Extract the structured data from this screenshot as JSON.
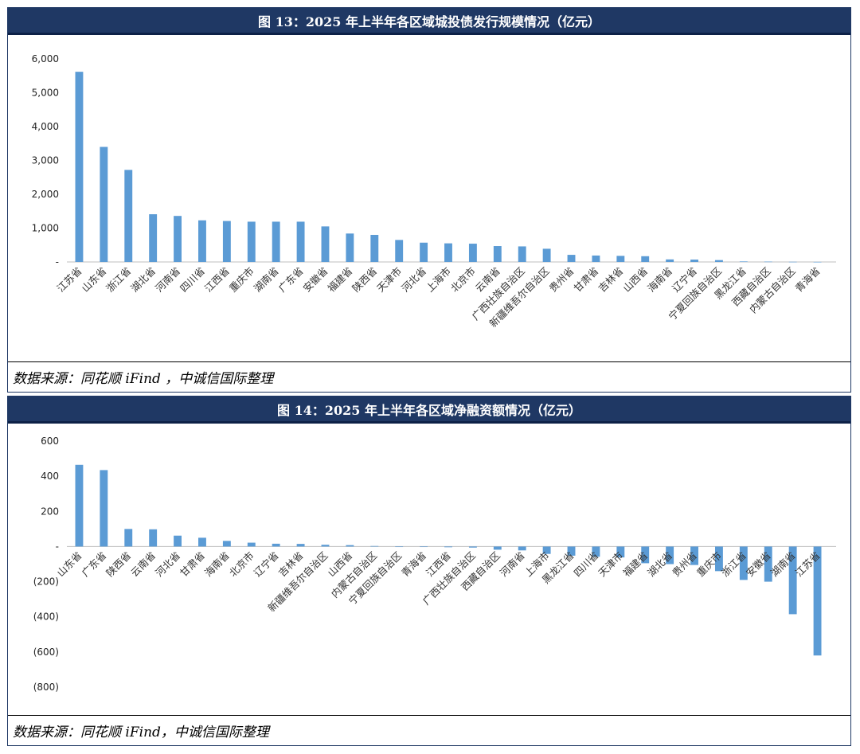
{
  "colors": {
    "bar": "#5b9bd5",
    "title_bg": "#1f3864",
    "axis": "#bfbfbf"
  },
  "figures": [
    {
      "title": "图 13：2025 年上半年各区域城投债发行规模情况（亿元）",
      "source": "数据来源：同花顺 iFind ，中诚信国际整理"
    },
    {
      "title": "图 14：2025 年上半年各区域净融资额情况（亿元）",
      "source": "数据来源：同花顺 iFind，中诚信国际整理"
    }
  ],
  "chart_data": [
    {
      "type": "bar",
      "title": "",
      "xlabel": "",
      "ylabel": "",
      "ylim": [
        0,
        6000
      ],
      "yticks": [
        0,
        1000,
        2000,
        3000,
        4000,
        5000,
        6000
      ],
      "ytick_labels": [
        "-",
        "1,000",
        "2,000",
        "3,000",
        "4,000",
        "5,000",
        "6,000"
      ],
      "grid": false,
      "categories": [
        "江苏省",
        "山东省",
        "浙江省",
        "湖北省",
        "河南省",
        "四川省",
        "江西省",
        "重庆市",
        "湖南省",
        "广东省",
        "安徽省",
        "福建省",
        "陕西省",
        "天津市",
        "河北省",
        "上海市",
        "北京市",
        "云南省",
        "广西壮族自治区",
        "新疆维吾尔自治区",
        "贵州省",
        "甘肃省",
        "吉林省",
        "山西省",
        "海南省",
        "辽宁省",
        "宁夏回族自治区",
        "黑龙江省",
        "西藏自治区",
        "内蒙古自治区",
        "青海省"
      ],
      "values": [
        5620,
        3400,
        2720,
        1410,
        1360,
        1230,
        1210,
        1190,
        1190,
        1190,
        1050,
        840,
        800,
        650,
        570,
        550,
        540,
        470,
        460,
        390,
        210,
        190,
        180,
        170,
        75,
        70,
        55,
        15,
        10,
        5,
        2
      ]
    },
    {
      "type": "bar",
      "title": "",
      "xlabel": "",
      "ylabel": "",
      "ylim": [
        -800,
        600
      ],
      "yticks": [
        -800,
        -600,
        -400,
        -200,
        0,
        200,
        400,
        600
      ],
      "ytick_labels": [
        "(800)",
        "(600)",
        "(400)",
        "(200)",
        "-",
        "200",
        "400",
        "600"
      ],
      "grid": false,
      "categories": [
        "山东省",
        "广东省",
        "陕西省",
        "云南省",
        "河北省",
        "甘肃省",
        "海南省",
        "北京市",
        "辽宁省",
        "吉林省",
        "新疆维吾尔自治区",
        "山西省",
        "内蒙古自治区",
        "宁夏回族自治区",
        "青海省",
        "江西省",
        "广西壮族自治区",
        "西藏自治区",
        "河南省",
        "上海市",
        "黑龙江省",
        "四川省",
        "天津市",
        "福建省",
        "湖北省",
        "贵州省",
        "重庆市",
        "浙江省",
        "安徽省",
        "湖南省",
        "江苏省"
      ],
      "values": [
        465,
        435,
        100,
        98,
        62,
        50,
        32,
        22,
        16,
        15,
        10,
        8,
        3,
        -1,
        -2,
        -4,
        -6,
        -18,
        -22,
        -42,
        -52,
        -58,
        -62,
        -95,
        -100,
        -105,
        -140,
        -190,
        -200,
        -385,
        -620
      ]
    }
  ]
}
